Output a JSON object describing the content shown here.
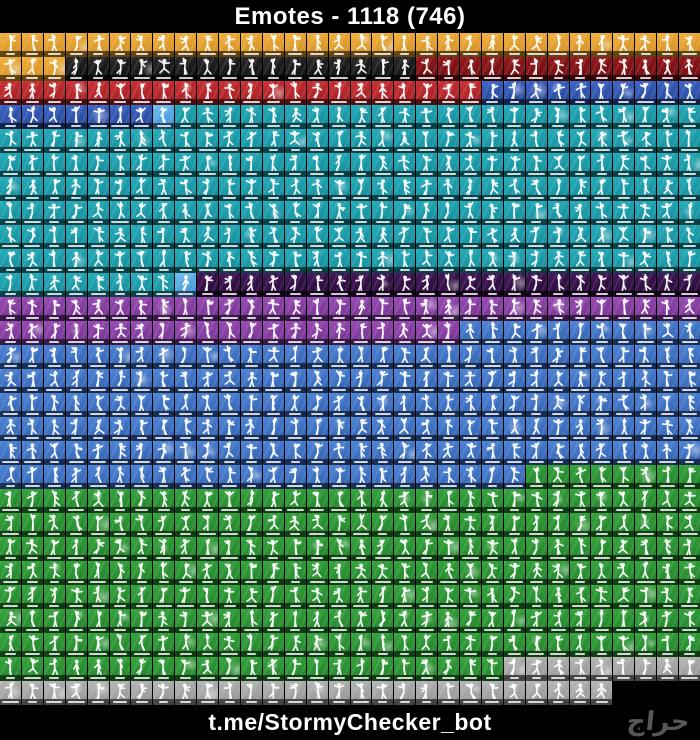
{
  "header": {
    "title": "Emotes - 1118 (746)"
  },
  "footer": {
    "link": "t.me/StormyChecker_bot",
    "watermark": "حراج"
  },
  "palette": {
    "gold": {
      "light": "#f2b23f",
      "base": "#cf8a1f"
    },
    "black": {
      "light": "#2a2a2a",
      "base": "#0c0c0c"
    },
    "dark_red": {
      "light": "#96181c",
      "base": "#680d10"
    },
    "red": {
      "light": "#cc3134",
      "base": "#9e1d22"
    },
    "dark_blue": {
      "light": "#3c66c9",
      "base": "#24418e"
    },
    "light_blue": {
      "light": "#6cc0f0",
      "base": "#3e8ed2"
    },
    "teal": {
      "light": "#25adbb",
      "base": "#128795"
    },
    "dark_purple": {
      "light": "#46175c",
      "base": "#220a31"
    },
    "purple": {
      "light": "#9a4cb4",
      "base": "#6f2f8c"
    },
    "blue": {
      "light": "#4f86d8",
      "base": "#2e5cab"
    },
    "green": {
      "light": "#36a63e",
      "base": "#1f7d27"
    },
    "gray": {
      "light": "#b8b8b8",
      "base": "#8f8f8f"
    },
    "blank": {
      "light": "#000000",
      "base": "#000000"
    }
  },
  "grid": {
    "columns": 32,
    "rows": [
      {
        "segments": [
          [
            "gold",
            32
          ]
        ]
      },
      {
        "segments": [
          [
            "gold",
            3
          ],
          [
            "black",
            16
          ],
          [
            "dark_red",
            13
          ]
        ]
      },
      {
        "segments": [
          [
            "red",
            22
          ],
          [
            "dark_blue",
            10
          ]
        ]
      },
      {
        "segments": [
          [
            "dark_blue",
            7
          ],
          [
            "light_blue",
            1
          ],
          [
            "teal",
            24
          ]
        ]
      },
      {
        "segments": [
          [
            "teal",
            32
          ]
        ]
      },
      {
        "segments": [
          [
            "teal",
            32
          ]
        ]
      },
      {
        "segments": [
          [
            "teal",
            32
          ]
        ]
      },
      {
        "segments": [
          [
            "teal",
            32
          ]
        ]
      },
      {
        "segments": [
          [
            "teal",
            32
          ]
        ]
      },
      {
        "segments": [
          [
            "teal",
            32
          ]
        ]
      },
      {
        "segments": [
          [
            "teal",
            8
          ],
          [
            "light_blue",
            1
          ],
          [
            "dark_purple",
            23
          ]
        ]
      },
      {
        "segments": [
          [
            "purple",
            32
          ]
        ]
      },
      {
        "segments": [
          [
            "purple",
            21
          ],
          [
            "blue",
            11
          ]
        ]
      },
      {
        "segments": [
          [
            "blue",
            32
          ]
        ]
      },
      {
        "segments": [
          [
            "blue",
            32
          ]
        ]
      },
      {
        "segments": [
          [
            "blue",
            32
          ]
        ]
      },
      {
        "segments": [
          [
            "blue",
            32
          ]
        ]
      },
      {
        "segments": [
          [
            "blue",
            32
          ]
        ]
      },
      {
        "segments": [
          [
            "blue",
            24
          ],
          [
            "green",
            8
          ]
        ]
      },
      {
        "segments": [
          [
            "green",
            32
          ]
        ]
      },
      {
        "segments": [
          [
            "green",
            32
          ]
        ]
      },
      {
        "segments": [
          [
            "green",
            32
          ]
        ]
      },
      {
        "segments": [
          [
            "green",
            32
          ]
        ]
      },
      {
        "segments": [
          [
            "green",
            32
          ]
        ]
      },
      {
        "segments": [
          [
            "green",
            32
          ]
        ]
      },
      {
        "segments": [
          [
            "green",
            32
          ]
        ]
      },
      {
        "segments": [
          [
            "green",
            23
          ],
          [
            "gray",
            9
          ]
        ]
      },
      {
        "segments": [
          [
            "gray",
            28
          ],
          [
            "blank",
            4
          ]
        ]
      }
    ]
  }
}
